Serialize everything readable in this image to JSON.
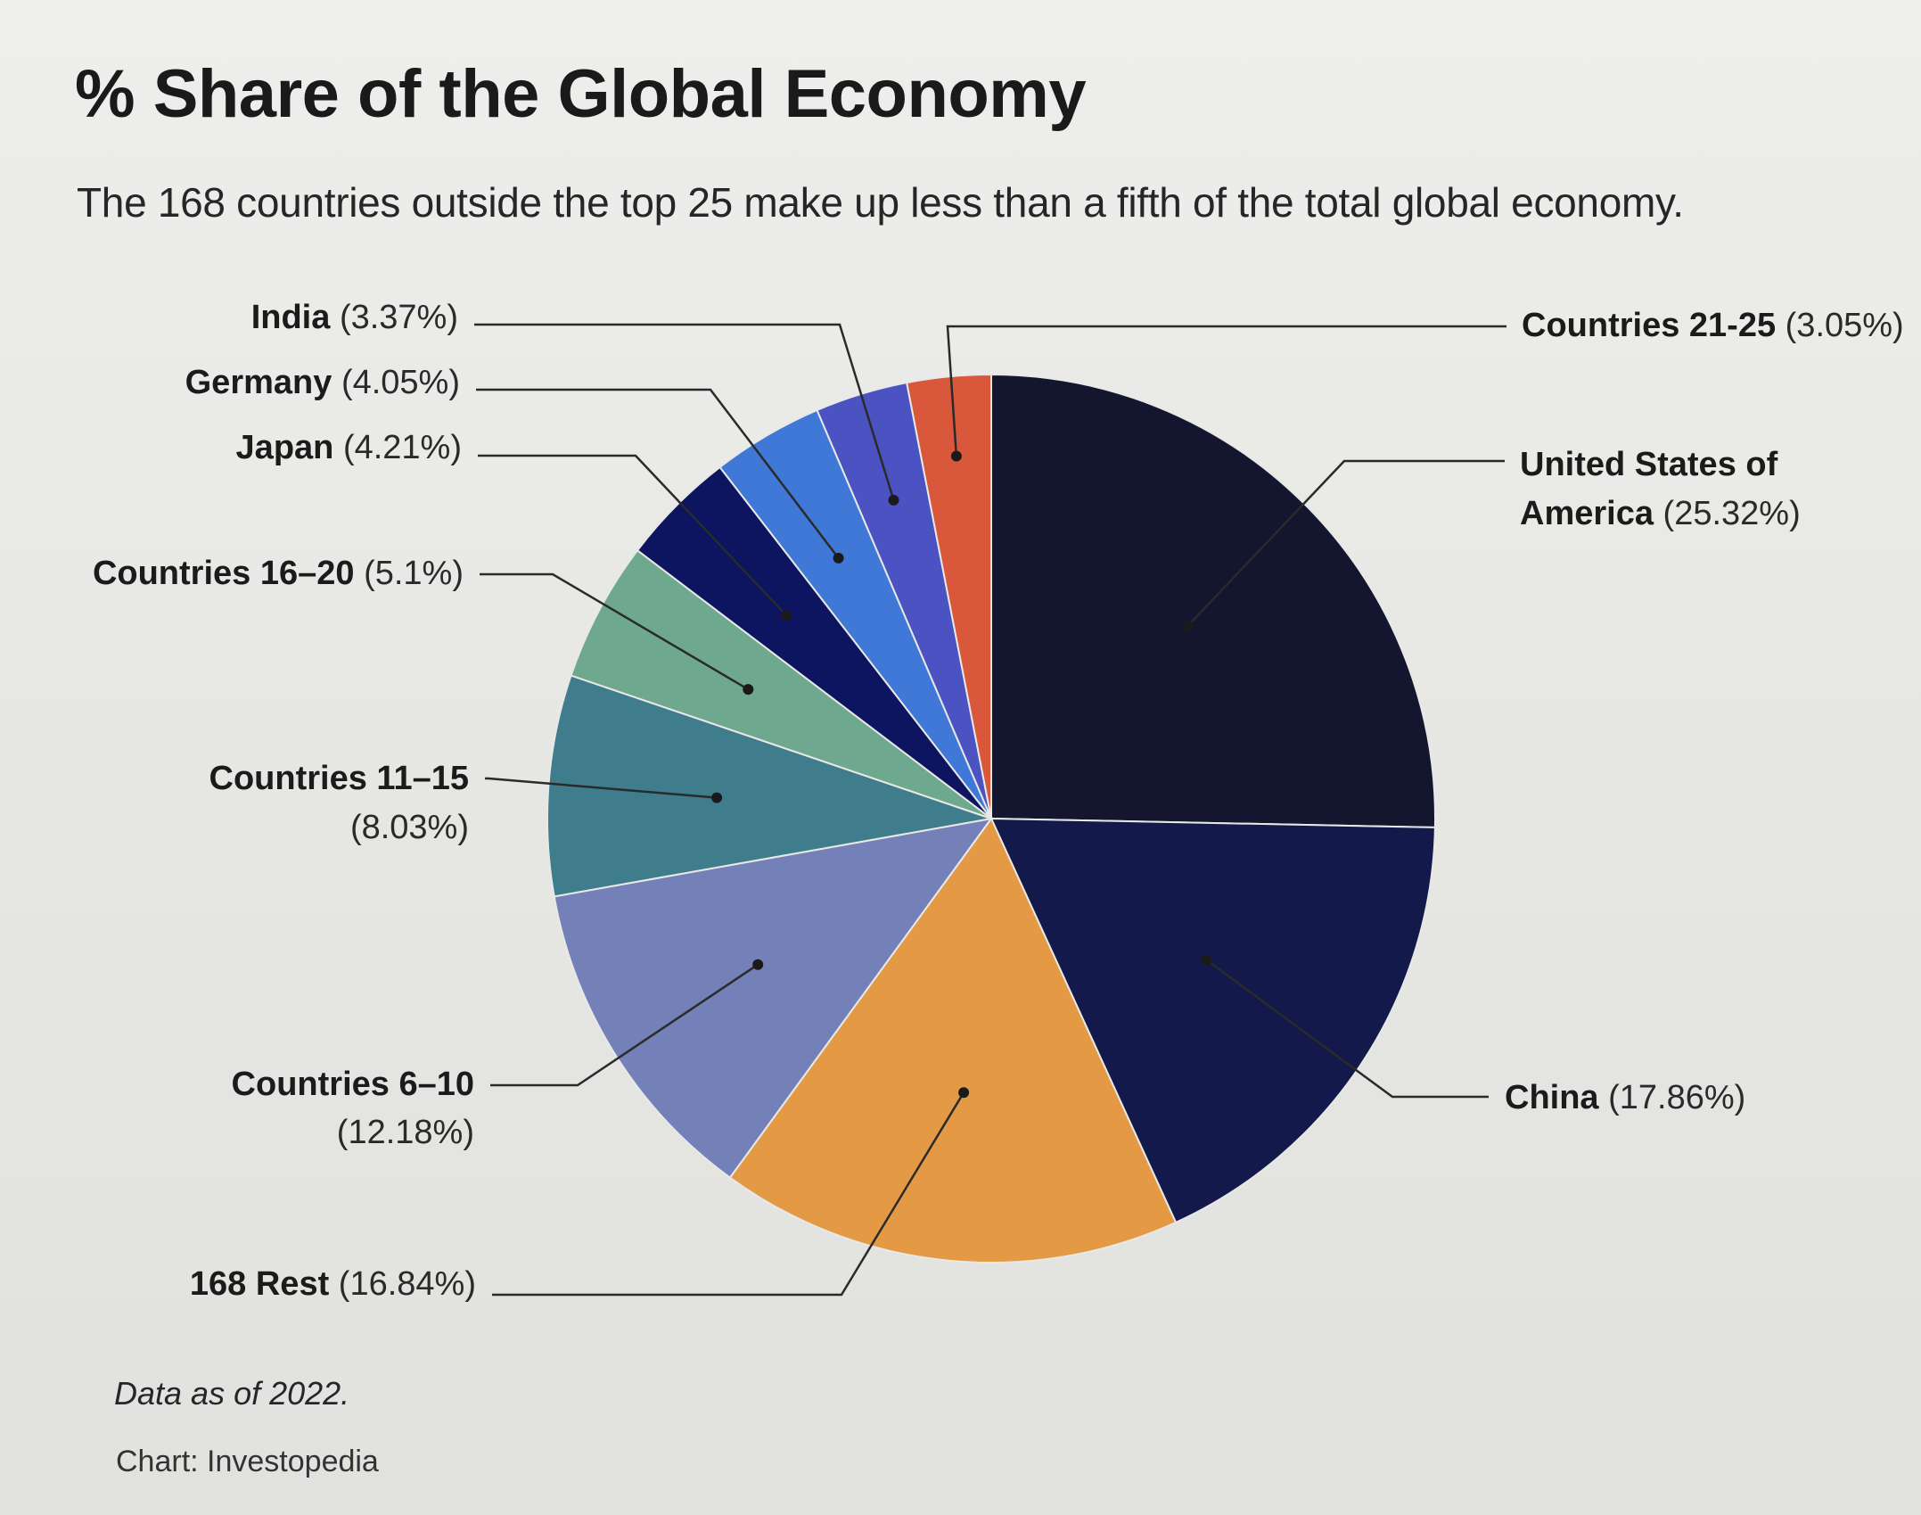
{
  "title": "% Share of the Global Economy",
  "subtitle": "The 168 countries outside the top 25 make up less than a fifth of the total global economy.",
  "note": "Data as of 2022.",
  "source": "Chart: Investopedia",
  "chart_data": {
    "type": "pie",
    "title": "% Share of the Global Economy",
    "unit": "%",
    "start": "12 o'clock",
    "direction": "clockwise",
    "slices": [
      {
        "name": "United States of America",
        "value": 25.32,
        "display": "(25.32%)",
        "color": "#141630"
      },
      {
        "name": "China",
        "value": 17.86,
        "display": "(17.86%)",
        "color": "#13194a"
      },
      {
        "name": "168 Rest",
        "value": 16.84,
        "display": "(16.84%)",
        "color": "#e49a45"
      },
      {
        "name": "Countries 6–10",
        "value": 12.18,
        "display": "(12.18%)",
        "color": "#7481b8"
      },
      {
        "name": "Countries 11–15",
        "value": 8.03,
        "display": "(8.03%)",
        "color": "#3f7d8c"
      },
      {
        "name": "Countries 16–20",
        "value": 5.1,
        "display": "(5.1%)",
        "color": "#6ea88e"
      },
      {
        "name": "Japan",
        "value": 4.21,
        "display": "(4.21%)",
        "color": "#0d1460"
      },
      {
        "name": "Germany",
        "value": 4.05,
        "display": "(4.05%)",
        "color": "#3f78d6"
      },
      {
        "name": "India",
        "value": 3.37,
        "display": "(3.37%)",
        "color": "#4b52c2"
      },
      {
        "name": "Countries 21-25",
        "value": 3.05,
        "display": "(3.05%)",
        "color": "#d9573a"
      }
    ]
  }
}
